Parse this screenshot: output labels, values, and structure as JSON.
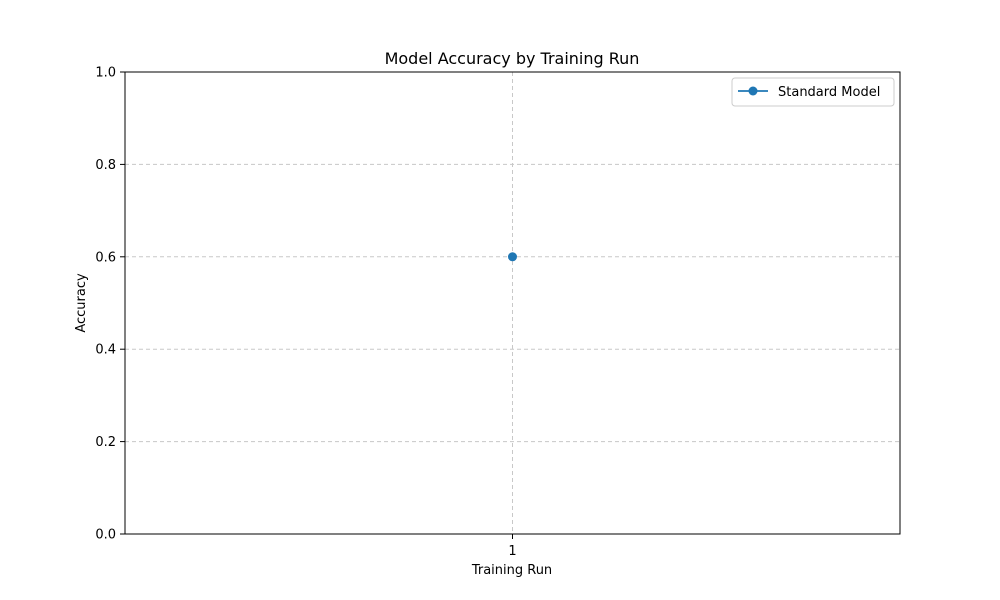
{
  "chart_data": {
    "type": "line",
    "title": "Model Accuracy by Training Run",
    "xlabel": "Training Run",
    "ylabel": "Accuracy",
    "x": [
      1
    ],
    "x_tick_labels": [
      "1"
    ],
    "ylim": [
      0,
      1
    ],
    "y_ticks": [
      0.0,
      0.2,
      0.4,
      0.6,
      0.8,
      1.0
    ],
    "y_tick_labels": [
      "0.0",
      "0.2",
      "0.4",
      "0.6",
      "0.8",
      "1.0"
    ],
    "grid": true,
    "legend_position": "top-right",
    "series": [
      {
        "name": "Standard Model",
        "values": [
          0.6
        ],
        "color": "#1f77b4",
        "marker": "circle"
      }
    ]
  }
}
